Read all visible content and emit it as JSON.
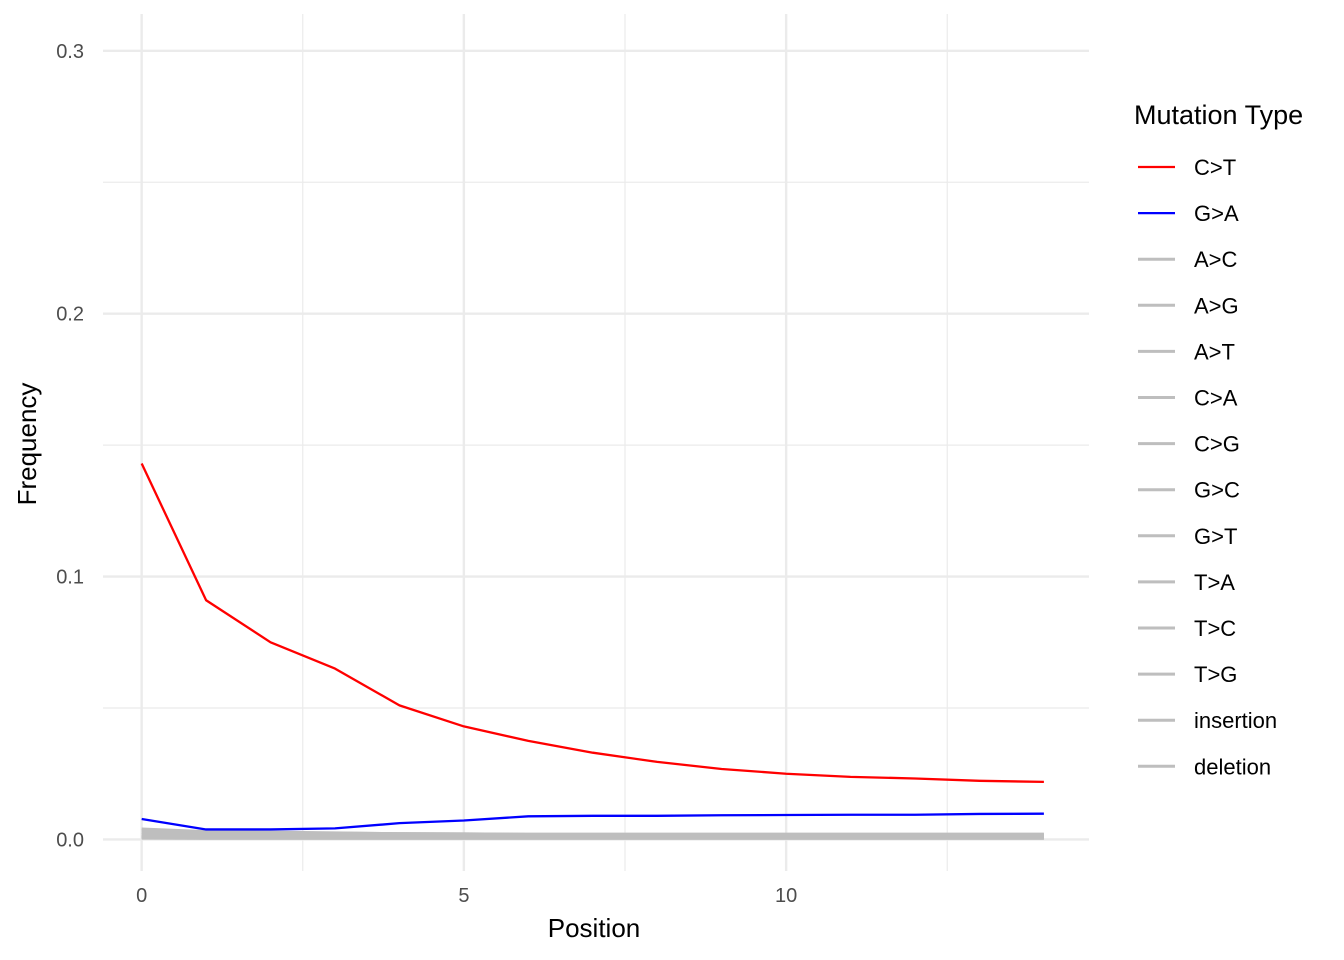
{
  "chart_data": {
    "type": "line",
    "xlabel": "Position",
    "ylabel": "Frequency",
    "xlim": [
      -0.6,
      14.7
    ],
    "ylim": [
      -0.012,
      0.314
    ],
    "x_ticks": [
      0,
      5,
      10
    ],
    "x_tick_labels": [
      "0",
      "5",
      "10"
    ],
    "y_ticks": [
      0.0,
      0.1,
      0.2,
      0.3
    ],
    "y_tick_labels": [
      "0.0",
      "0.1",
      "0.2",
      "0.3"
    ],
    "x_minor_ticks": [
      2.5,
      7.5,
      12.5
    ],
    "y_minor_ticks": [
      0.05,
      0.15,
      0.25
    ],
    "grid": true,
    "legend_title": "Mutation Type",
    "legend_position": "right",
    "x": [
      0,
      1,
      2,
      3,
      4,
      5,
      6,
      7,
      8,
      9,
      10,
      11,
      12,
      13,
      14
    ],
    "series": [
      {
        "name": "C>T",
        "color": "#ff0000",
        "values": [
          0.143,
          0.091,
          0.075,
          0.065,
          0.051,
          0.043,
          0.0375,
          0.033,
          0.0295,
          0.0268,
          0.025,
          0.0238,
          0.0232,
          0.0223,
          0.0219
        ]
      },
      {
        "name": "G>A",
        "color": "#0000ff",
        "values": [
          0.0078,
          0.0038,
          0.0038,
          0.0042,
          0.0062,
          0.0072,
          0.0088,
          0.009,
          0.009,
          0.0092,
          0.0093,
          0.0094,
          0.0094,
          0.0097,
          0.0098
        ]
      },
      {
        "name": "A>C",
        "color": "#bebebe",
        "values": [
          0.001,
          0.0008,
          0.0008,
          0.0008,
          0.0008,
          0.0008,
          0.0008,
          0.0008,
          0.0008,
          0.0008,
          0.0008,
          0.0008,
          0.0008,
          0.0008,
          0.0008
        ]
      },
      {
        "name": "A>G",
        "color": "#bebebe",
        "values": [
          0.004,
          0.003,
          0.0028,
          0.0025,
          0.0022,
          0.0021,
          0.002,
          0.002,
          0.002,
          0.002,
          0.002,
          0.002,
          0.002,
          0.002,
          0.002
        ]
      },
      {
        "name": "A>T",
        "color": "#bebebe",
        "values": [
          0.001,
          0.0008,
          0.0008,
          0.0008,
          0.0008,
          0.0008,
          0.0008,
          0.0008,
          0.0008,
          0.0008,
          0.0008,
          0.0008,
          0.0008,
          0.0008,
          0.0008
        ]
      },
      {
        "name": "C>A",
        "color": "#bebebe",
        "values": [
          0.002,
          0.0015,
          0.0014,
          0.0013,
          0.0012,
          0.0012,
          0.0012,
          0.0012,
          0.0012,
          0.0012,
          0.0012,
          0.0012,
          0.0012,
          0.0012,
          0.0012
        ]
      },
      {
        "name": "C>G",
        "color": "#bebebe",
        "values": [
          0.001,
          0.0008,
          0.0008,
          0.0008,
          0.0008,
          0.0008,
          0.0008,
          0.0008,
          0.0008,
          0.0008,
          0.0008,
          0.0008,
          0.0008,
          0.0008,
          0.0008
        ]
      },
      {
        "name": "G>C",
        "color": "#bebebe",
        "values": [
          0.001,
          0.0008,
          0.0008,
          0.0008,
          0.0008,
          0.0008,
          0.0008,
          0.0008,
          0.0008,
          0.0008,
          0.0008,
          0.0008,
          0.0008,
          0.0008,
          0.0008
        ]
      },
      {
        "name": "G>T",
        "color": "#bebebe",
        "values": [
          0.0025,
          0.0018,
          0.0016,
          0.0015,
          0.0014,
          0.0014,
          0.0014,
          0.0014,
          0.0014,
          0.0014,
          0.0014,
          0.0014,
          0.0014,
          0.0014,
          0.0014
        ]
      },
      {
        "name": "T>A",
        "color": "#bebebe",
        "values": [
          0.001,
          0.0008,
          0.0008,
          0.0008,
          0.0008,
          0.0008,
          0.0008,
          0.0008,
          0.0008,
          0.0008,
          0.0008,
          0.0008,
          0.0008,
          0.0008,
          0.0008
        ]
      },
      {
        "name": "T>C",
        "color": "#bebebe",
        "values": [
          0.0035,
          0.0028,
          0.0026,
          0.0024,
          0.0022,
          0.0021,
          0.002,
          0.002,
          0.002,
          0.002,
          0.002,
          0.002,
          0.002,
          0.002,
          0.002
        ]
      },
      {
        "name": "T>G",
        "color": "#bebebe",
        "values": [
          0.001,
          0.0008,
          0.0008,
          0.0008,
          0.0008,
          0.0008,
          0.0008,
          0.0008,
          0.0008,
          0.0008,
          0.0008,
          0.0008,
          0.0008,
          0.0008,
          0.0008
        ]
      },
      {
        "name": "insertion",
        "color": "#bebebe",
        "values": [
          0.0005,
          0.0004,
          0.0004,
          0.0004,
          0.0004,
          0.0004,
          0.0004,
          0.0004,
          0.0004,
          0.0004,
          0.0004,
          0.0004,
          0.0004,
          0.0004,
          0.0004
        ]
      },
      {
        "name": "deletion",
        "color": "#bebebe",
        "values": [
          0.0008,
          0.0006,
          0.0006,
          0.0006,
          0.0006,
          0.0006,
          0.0006,
          0.0006,
          0.0006,
          0.0006,
          0.0006,
          0.0006,
          0.0006,
          0.0006,
          0.0006
        ]
      }
    ]
  }
}
